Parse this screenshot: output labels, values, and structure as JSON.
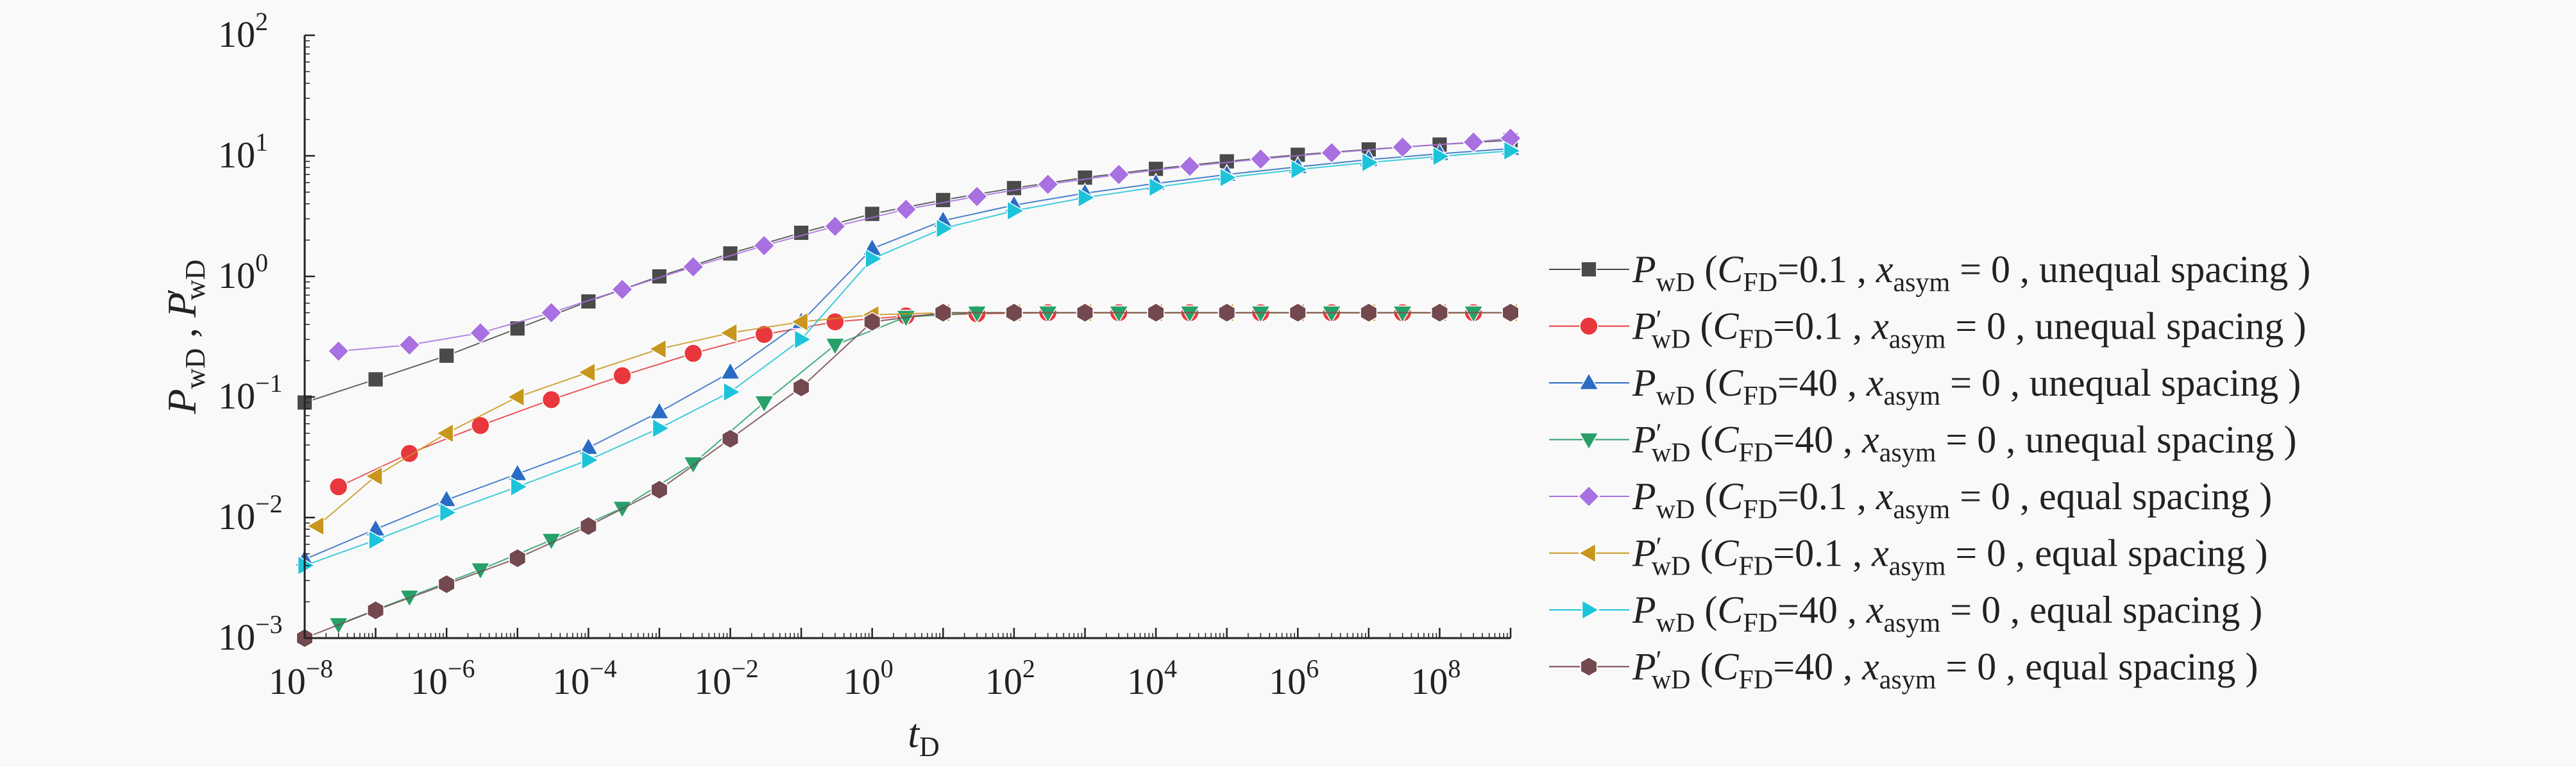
{
  "chart_data": {
    "type": "line",
    "xscale": "log",
    "yscale": "log",
    "xlim": [
      1e-08,
      1000000000.0
    ],
    "ylim": [
      0.001,
      100
    ],
    "grid": false,
    "legend_position": "right",
    "axes": {
      "x_label_main": "t",
      "x_label_sub": "D",
      "y_label": {
        "p1": "P",
        "s1": "wD",
        "sep": " , ",
        "p2": "P",
        "s2": "wD"
      }
    },
    "x_ticks": [
      {
        "value": 1e-08,
        "base": "10",
        "exp": "−8"
      },
      {
        "value": 1e-06,
        "base": "10",
        "exp": "−6"
      },
      {
        "value": 0.0001,
        "base": "10",
        "exp": "−4"
      },
      {
        "value": 0.01,
        "base": "10",
        "exp": "−2"
      },
      {
        "value": 1,
        "base": "10",
        "exp": "0"
      },
      {
        "value": 100,
        "base": "10",
        "exp": "2"
      },
      {
        "value": 10000,
        "base": "10",
        "exp": "4"
      },
      {
        "value": 1000000,
        "base": "10",
        "exp": "6"
      },
      {
        "value": 100000000,
        "base": "10",
        "exp": "8"
      }
    ],
    "y_ticks": [
      {
        "value": 0.001,
        "base": "10",
        "exp": "−3"
      },
      {
        "value": 0.01,
        "base": "10",
        "exp": "−2"
      },
      {
        "value": 0.1,
        "base": "10",
        "exp": "−1"
      },
      {
        "value": 1,
        "base": "10",
        "exp": "0"
      },
      {
        "value": 10,
        "base": "10",
        "exp": "1"
      },
      {
        "value": 100,
        "base": "10",
        "exp": "2"
      }
    ],
    "series": [
      {
        "legend": {
          "var": "P",
          "prime": false,
          "c": "0.1",
          "spacing": "unequal spacing"
        },
        "marker": "square",
        "color": "#4a4a4a",
        "x": [
          1e-08,
          1e-07,
          1e-06,
          1e-05,
          0.0001,
          0.001,
          0.01,
          0.1,
          1,
          10,
          100,
          1000,
          10000,
          100000,
          1000000,
          10000000,
          100000000,
          1000000000
        ],
        "y": [
          0.09,
          0.14,
          0.22,
          0.37,
          0.62,
          1.0,
          1.55,
          2.3,
          3.3,
          4.3,
          5.4,
          6.6,
          7.8,
          9.0,
          10.2,
          11.3,
          12.4,
          13.5
        ]
      },
      {
        "legend": {
          "var": "P",
          "prime": true,
          "c": "0.1",
          "spacing": "unequal spacing"
        },
        "marker": "circle",
        "color": "#e8383d",
        "x": [
          3e-08,
          3e-07,
          3e-06,
          3e-05,
          0.0003,
          0.003,
          0.03,
          0.3,
          3,
          30,
          300,
          3000,
          30000,
          300000,
          3000000,
          30000000,
          300000000
        ],
        "y": [
          0.018,
          0.034,
          0.058,
          0.095,
          0.15,
          0.23,
          0.33,
          0.42,
          0.47,
          0.49,
          0.5,
          0.5,
          0.5,
          0.5,
          0.5,
          0.5,
          0.5
        ]
      },
      {
        "legend": {
          "var": "P",
          "prime": false,
          "c": "40",
          "spacing": "unequal spacing"
        },
        "marker": "triangle-up",
        "color": "#2a6cc4",
        "x": [
          1e-08,
          1e-07,
          1e-06,
          1e-05,
          0.0001,
          0.001,
          0.01,
          0.1,
          1,
          10,
          100,
          1000,
          10000,
          100000,
          1000000,
          10000000,
          100000000,
          1000000000
        ],
        "y": [
          0.0045,
          0.008,
          0.014,
          0.023,
          0.038,
          0.075,
          0.16,
          0.42,
          1.7,
          2.9,
          3.9,
          4.9,
          5.9,
          7.0,
          8.1,
          9.3,
          10.4,
          11.5
        ]
      },
      {
        "legend": {
          "var": "P",
          "prime": true,
          "c": "40",
          "spacing": "unequal spacing"
        },
        "marker": "triangle-down",
        "color": "#27a06a",
        "x": [
          3e-08,
          3e-07,
          3e-06,
          3e-05,
          0.0003,
          0.003,
          0.03,
          0.3,
          3,
          30,
          300,
          3000,
          30000,
          300000,
          3000000,
          30000000,
          300000000
        ],
        "y": [
          0.0013,
          0.0022,
          0.0037,
          0.0065,
          0.012,
          0.028,
          0.09,
          0.27,
          0.46,
          0.5,
          0.5,
          0.5,
          0.5,
          0.5,
          0.5,
          0.5,
          0.5
        ]
      },
      {
        "legend": {
          "var": "P",
          "prime": false,
          "c": "0.1",
          "spacing": "equal spacing"
        },
        "marker": "diamond",
        "color": "#a870e0",
        "x": [
          3e-08,
          3e-07,
          3e-06,
          3e-05,
          0.0003,
          0.003,
          0.03,
          0.3,
          3,
          30,
          300,
          3000,
          30000,
          300000,
          3000000,
          30000000,
          300000000,
          1000000000
        ],
        "y": [
          0.24,
          0.27,
          0.34,
          0.5,
          0.78,
          1.2,
          1.8,
          2.6,
          3.6,
          4.6,
          5.8,
          7.0,
          8.2,
          9.4,
          10.6,
          11.8,
          13.0,
          14.0
        ]
      },
      {
        "legend": {
          "var": "P",
          "prime": true,
          "c": "0.1",
          "spacing": "equal spacing"
        },
        "marker": "triangle-left",
        "color": "#c8961c",
        "x": [
          1.5e-08,
          1e-07,
          1e-06,
          1e-05,
          0.0001,
          0.001,
          0.01,
          0.1,
          1,
          10,
          100,
          1000,
          10000,
          100000,
          1000000,
          10000000,
          100000000,
          1000000000
        ],
        "y": [
          0.0085,
          0.022,
          0.05,
          0.1,
          0.16,
          0.25,
          0.34,
          0.42,
          0.48,
          0.5,
          0.5,
          0.5,
          0.5,
          0.5,
          0.5,
          0.5,
          0.5,
          0.5
        ]
      },
      {
        "legend": {
          "var": "P",
          "prime": false,
          "c": "40",
          "spacing": "equal spacing"
        },
        "marker": "triangle-right",
        "color": "#1dc4d9",
        "x": [
          1e-08,
          1e-07,
          1e-06,
          1e-05,
          0.0001,
          0.001,
          0.01,
          0.1,
          1,
          10,
          100,
          1000,
          10000,
          100000,
          1000000,
          10000000,
          100000000,
          1000000000
        ],
        "y": [
          0.004,
          0.0065,
          0.011,
          0.018,
          0.03,
          0.055,
          0.11,
          0.3,
          1.4,
          2.5,
          3.5,
          4.5,
          5.5,
          6.6,
          7.7,
          8.8,
          9.9,
          11.0
        ]
      },
      {
        "legend": {
          "var": "P",
          "prime": true,
          "c": "40",
          "spacing": "equal spacing"
        },
        "marker": "hexagon",
        "color": "#74484f",
        "x": [
          1e-08,
          1e-07,
          1e-06,
          1e-05,
          0.0001,
          0.001,
          0.01,
          0.1,
          1,
          10,
          100,
          1000,
          10000,
          100000,
          1000000,
          10000000,
          100000000,
          1000000000
        ],
        "y": [
          0.001,
          0.0017,
          0.0028,
          0.0046,
          0.0085,
          0.017,
          0.045,
          0.12,
          0.42,
          0.5,
          0.5,
          0.5,
          0.5,
          0.5,
          0.5,
          0.5,
          0.5,
          0.5
        ]
      }
    ]
  }
}
